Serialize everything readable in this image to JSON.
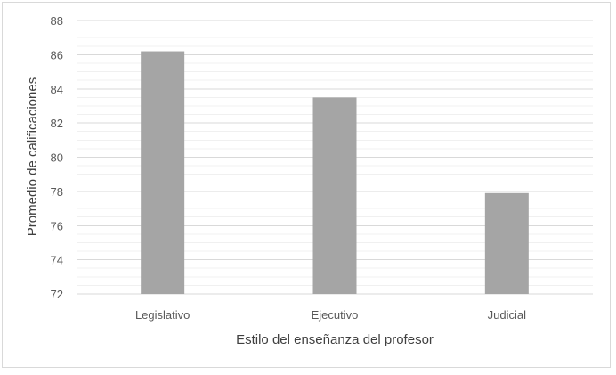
{
  "chart_data": {
    "type": "bar",
    "title": "",
    "xlabel": "Estilo del enseñanza del profesor",
    "ylabel": "Promedio de calificaciones",
    "categories": [
      "Legislativo",
      "Ejecutivo",
      "Judicial"
    ],
    "values": [
      86.2,
      83.5,
      77.9
    ],
    "ylim": [
      72,
      88
    ],
    "yticks": [
      72,
      74,
      76,
      78,
      80,
      82,
      84,
      86,
      88
    ],
    "grid": "major and minor horizontal",
    "legend": "none",
    "colors": {
      "bar": "#a5a5a5",
      "major_grid": "#d9d9d9",
      "minor_grid": "#f0f0f0"
    }
  }
}
